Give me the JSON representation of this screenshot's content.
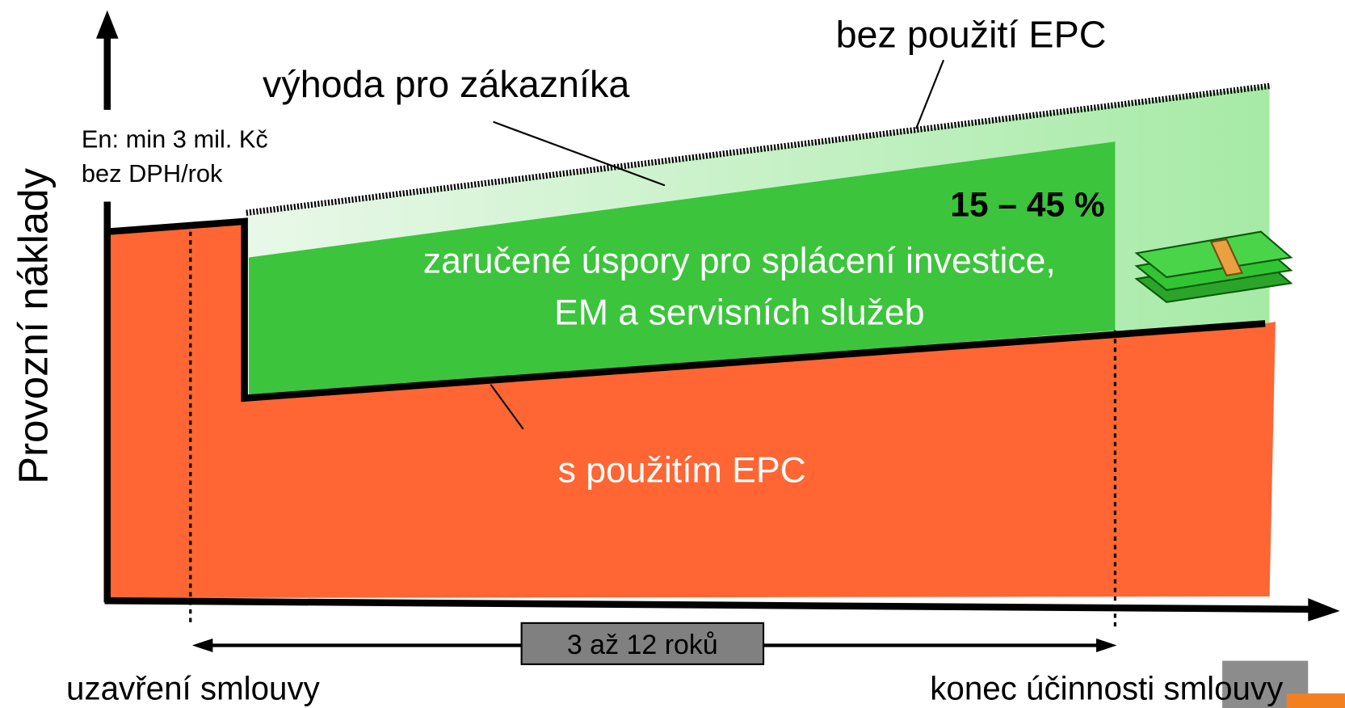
{
  "y_axis_label": "Provozní náklady",
  "energy_note": [
    "En: min 3 mil. Kč",
    "bez DPH/rok"
  ],
  "without_epc": "bez použití EPC",
  "customer_benefit": "výhoda pro zákazníka",
  "savings_range": "15 – 45 %",
  "guaranteed_savings": [
    "zaručené úspory pro splácení investice,",
    "EM a servisních služeb"
  ],
  "with_epc": "s použitím  EPC",
  "duration": "3 až 12 roků",
  "contract_start": "uzavření smlouvy",
  "contract_end": "konec účinnosti smlouvy"
}
